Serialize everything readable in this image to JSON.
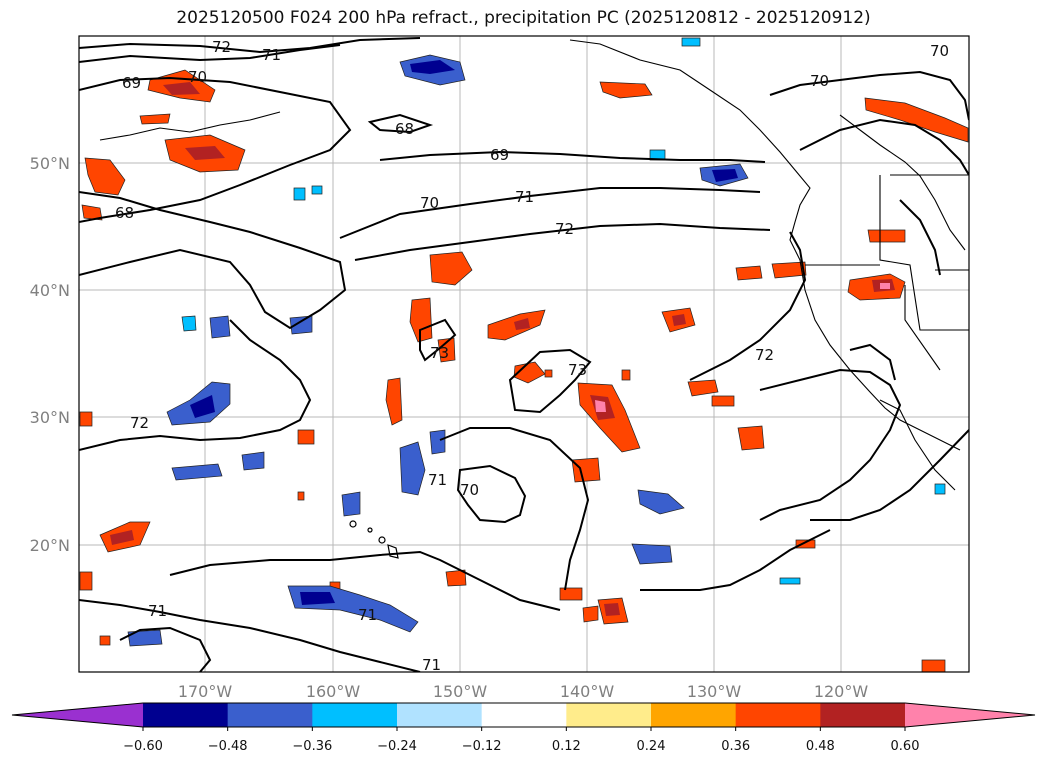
{
  "title": "2025120500 F024 200 hPa refract., precipitation PC (2025120812 - 2025120912)",
  "map": {
    "lat_ticks": [
      "50°N",
      "40°N",
      "30°N",
      "20°N"
    ],
    "lon_ticks": [
      "170°W",
      "160°W",
      "150°W",
      "140°W",
      "130°W",
      "120°W"
    ],
    "contour_labels": [
      "72",
      "71",
      "70",
      "69",
      "68",
      "69",
      "70",
      "71",
      "72",
      "68",
      "70",
      "72",
      "73",
      "73",
      "72",
      "71",
      "70",
      "71",
      "71",
      "71",
      "70"
    ]
  },
  "colorbar": {
    "labels": [
      "−0.60",
      "−0.48",
      "−0.36",
      "−0.24",
      "−0.12",
      "0.12",
      "0.24",
      "0.36",
      "0.48",
      "0.60"
    ],
    "colors": [
      "#9a30d0",
      "#000090",
      "#3a5fcd",
      "#00bfff",
      "#b0e2ff",
      "#ffffff",
      "#ffec8b",
      "#ffa500",
      "#ff4500",
      "#b22222",
      "#ff82ab"
    ]
  }
}
